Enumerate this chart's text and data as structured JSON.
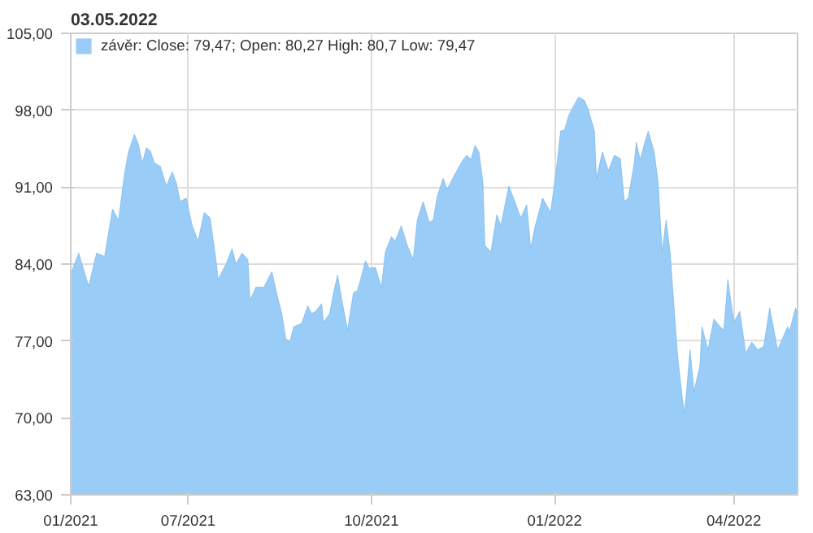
{
  "chart_data": {
    "type": "area",
    "title": "03.05.2022",
    "x": [
      "2021-05-03",
      "2021-05-07",
      "2021-05-12",
      "2021-05-16",
      "2021-05-20",
      "2021-05-24",
      "2021-05-27",
      "2021-05-30",
      "2021-06-01",
      "2021-06-04",
      "2021-06-06",
      "2021-06-08",
      "2021-06-10",
      "2021-06-12",
      "2021-06-14",
      "2021-06-17",
      "2021-06-20",
      "2021-06-23",
      "2021-06-25",
      "2021-06-27",
      "2021-06-30",
      "2021-07-03",
      "2021-07-06",
      "2021-07-09",
      "2021-07-12",
      "2021-07-15",
      "2021-07-16",
      "2021-07-20",
      "2021-07-23",
      "2021-07-25",
      "2021-07-28",
      "2021-07-31",
      "2021-08-01",
      "2021-08-04",
      "2021-08-08",
      "2021-08-12",
      "2021-08-15",
      "2021-08-17",
      "2021-08-19",
      "2021-08-21",
      "2021-08-23",
      "2021-08-27",
      "2021-08-30",
      "2021-09-01",
      "2021-09-03",
      "2021-09-06",
      "2021-09-07",
      "2021-09-10",
      "2021-09-12",
      "2021-09-14",
      "2021-09-16",
      "2021-09-19",
      "2021-09-22",
      "2021-09-24",
      "2021-09-26",
      "2021-09-28",
      "2021-09-30",
      "2021-10-03",
      "2021-10-06",
      "2021-10-08",
      "2021-10-11",
      "2021-10-13",
      "2021-10-16",
      "2021-10-19",
      "2021-10-22",
      "2021-10-24",
      "2021-10-27",
      "2021-10-30",
      "2021-11-01",
      "2021-11-03",
      "2021-11-06",
      "2021-11-08",
      "2021-11-12",
      "2021-11-16",
      "2021-11-18",
      "2021-11-20",
      "2021-11-22",
      "2021-11-24",
      "2021-11-26",
      "2021-11-27",
      "2021-11-30",
      "2021-12-03",
      "2021-12-05",
      "2021-12-09",
      "2021-12-12",
      "2021-12-15",
      "2021-12-18",
      "2021-12-20",
      "2021-12-22",
      "2021-12-26",
      "2021-12-30",
      "2022-01-02",
      "2022-01-04",
      "2022-01-06",
      "2022-01-08",
      "2022-01-10",
      "2022-01-13",
      "2022-01-16",
      "2022-01-18",
      "2022-01-21",
      "2022-01-22",
      "2022-01-25",
      "2022-01-28",
      "2022-01-31",
      "2022-02-03",
      "2022-02-05",
      "2022-02-07",
      "2022-02-10",
      "2022-02-11",
      "2022-02-13",
      "2022-02-15",
      "2022-02-17",
      "2022-02-20",
      "2022-02-22",
      "2022-02-24",
      "2022-02-26",
      "2022-02-28",
      "2022-03-02",
      "2022-03-04",
      "2022-03-07",
      "2022-03-08",
      "2022-03-10",
      "2022-03-12",
      "2022-03-15",
      "2022-03-16",
      "2022-03-19",
      "2022-03-22",
      "2022-03-25",
      "2022-03-27",
      "2022-03-29",
      "2022-04-01",
      "2022-04-04",
      "2022-04-07",
      "2022-04-10",
      "2022-04-13",
      "2022-04-16",
      "2022-04-19",
      "2022-04-23",
      "2022-04-28",
      "2022-04-29",
      "2022-05-02",
      "2022-05-03"
    ],
    "series": [
      {
        "name": "závěr: Close: 79,47; Open: 80,27 High: 80,7 Low: 79,47",
        "color": "#99cdf7",
        "values": [
          83.1,
          85.0,
          82.0,
          85.0,
          84.7,
          89.0,
          88.0,
          92.2,
          94.2,
          95.8,
          94.9,
          93.2,
          94.6,
          94.3,
          93.2,
          92.9,
          91.1,
          92.4,
          91.4,
          89.7,
          90.0,
          87.5,
          86.1,
          88.7,
          88.2,
          84.3,
          82.6,
          84.0,
          85.4,
          84.0,
          85.0,
          84.4,
          80.7,
          81.9,
          81.9,
          83.3,
          80.9,
          79.5,
          77.2,
          76.9,
          78.3,
          78.6,
          80.2,
          79.5,
          79.7,
          80.4,
          78.7,
          79.5,
          81.4,
          83.0,
          80.9,
          78.0,
          81.4,
          81.6,
          82.9,
          84.3,
          83.6,
          83.7,
          81.9,
          85.1,
          86.5,
          86.1,
          87.5,
          85.7,
          84.4,
          88.0,
          89.7,
          87.8,
          88.0,
          90.1,
          91.8,
          90.8,
          92.2,
          93.5,
          93.9,
          93.5,
          94.8,
          94.2,
          91.4,
          85.7,
          85.1,
          88.5,
          87.5,
          91.1,
          89.7,
          88.2,
          89.4,
          85.4,
          87.3,
          90.0,
          88.7,
          92.8,
          96.1,
          96.2,
          97.5,
          98.2,
          99.2,
          98.9,
          98.0,
          96.1,
          91.8,
          94.2,
          92.5,
          93.9,
          93.6,
          89.7,
          90.0,
          93.2,
          95.1,
          93.5,
          94.9,
          96.1,
          94.2,
          91.4,
          85.1,
          88.0,
          85.1,
          80.0,
          75.2,
          70.5,
          71.9,
          76.2,
          72.4,
          74.8,
          78.3,
          76.2,
          79.0,
          78.3,
          78.0,
          82.6,
          78.7,
          79.7,
          75.9,
          76.9,
          76.2,
          76.5,
          80.0,
          76.2,
          78.3,
          77.9,
          80.0,
          79.5
        ]
      }
    ],
    "xlim": [
      "2021-05-03",
      "2022-05-03"
    ],
    "xticks": [
      {
        "value": "2021-05-03",
        "label": "01/2021"
      },
      {
        "value": "2021-07-01",
        "label": "07/2021"
      },
      {
        "value": "2021-10-01",
        "label": "10/2021"
      },
      {
        "value": "2022-01-01",
        "label": "01/2022"
      },
      {
        "value": "2022-04-01",
        "label": "04/2022"
      }
    ],
    "ylim": [
      63,
      105
    ],
    "yticks": [
      {
        "value": 63,
        "label": "63,00"
      },
      {
        "value": 70,
        "label": "70,00"
      },
      {
        "value": 77,
        "label": "77,00"
      },
      {
        "value": 84,
        "label": "84,00"
      },
      {
        "value": 91,
        "label": "91,00"
      },
      {
        "value": 98,
        "label": "98,00"
      },
      {
        "value": 105,
        "label": "105,00"
      }
    ],
    "grid": true,
    "legend": "top left"
  }
}
